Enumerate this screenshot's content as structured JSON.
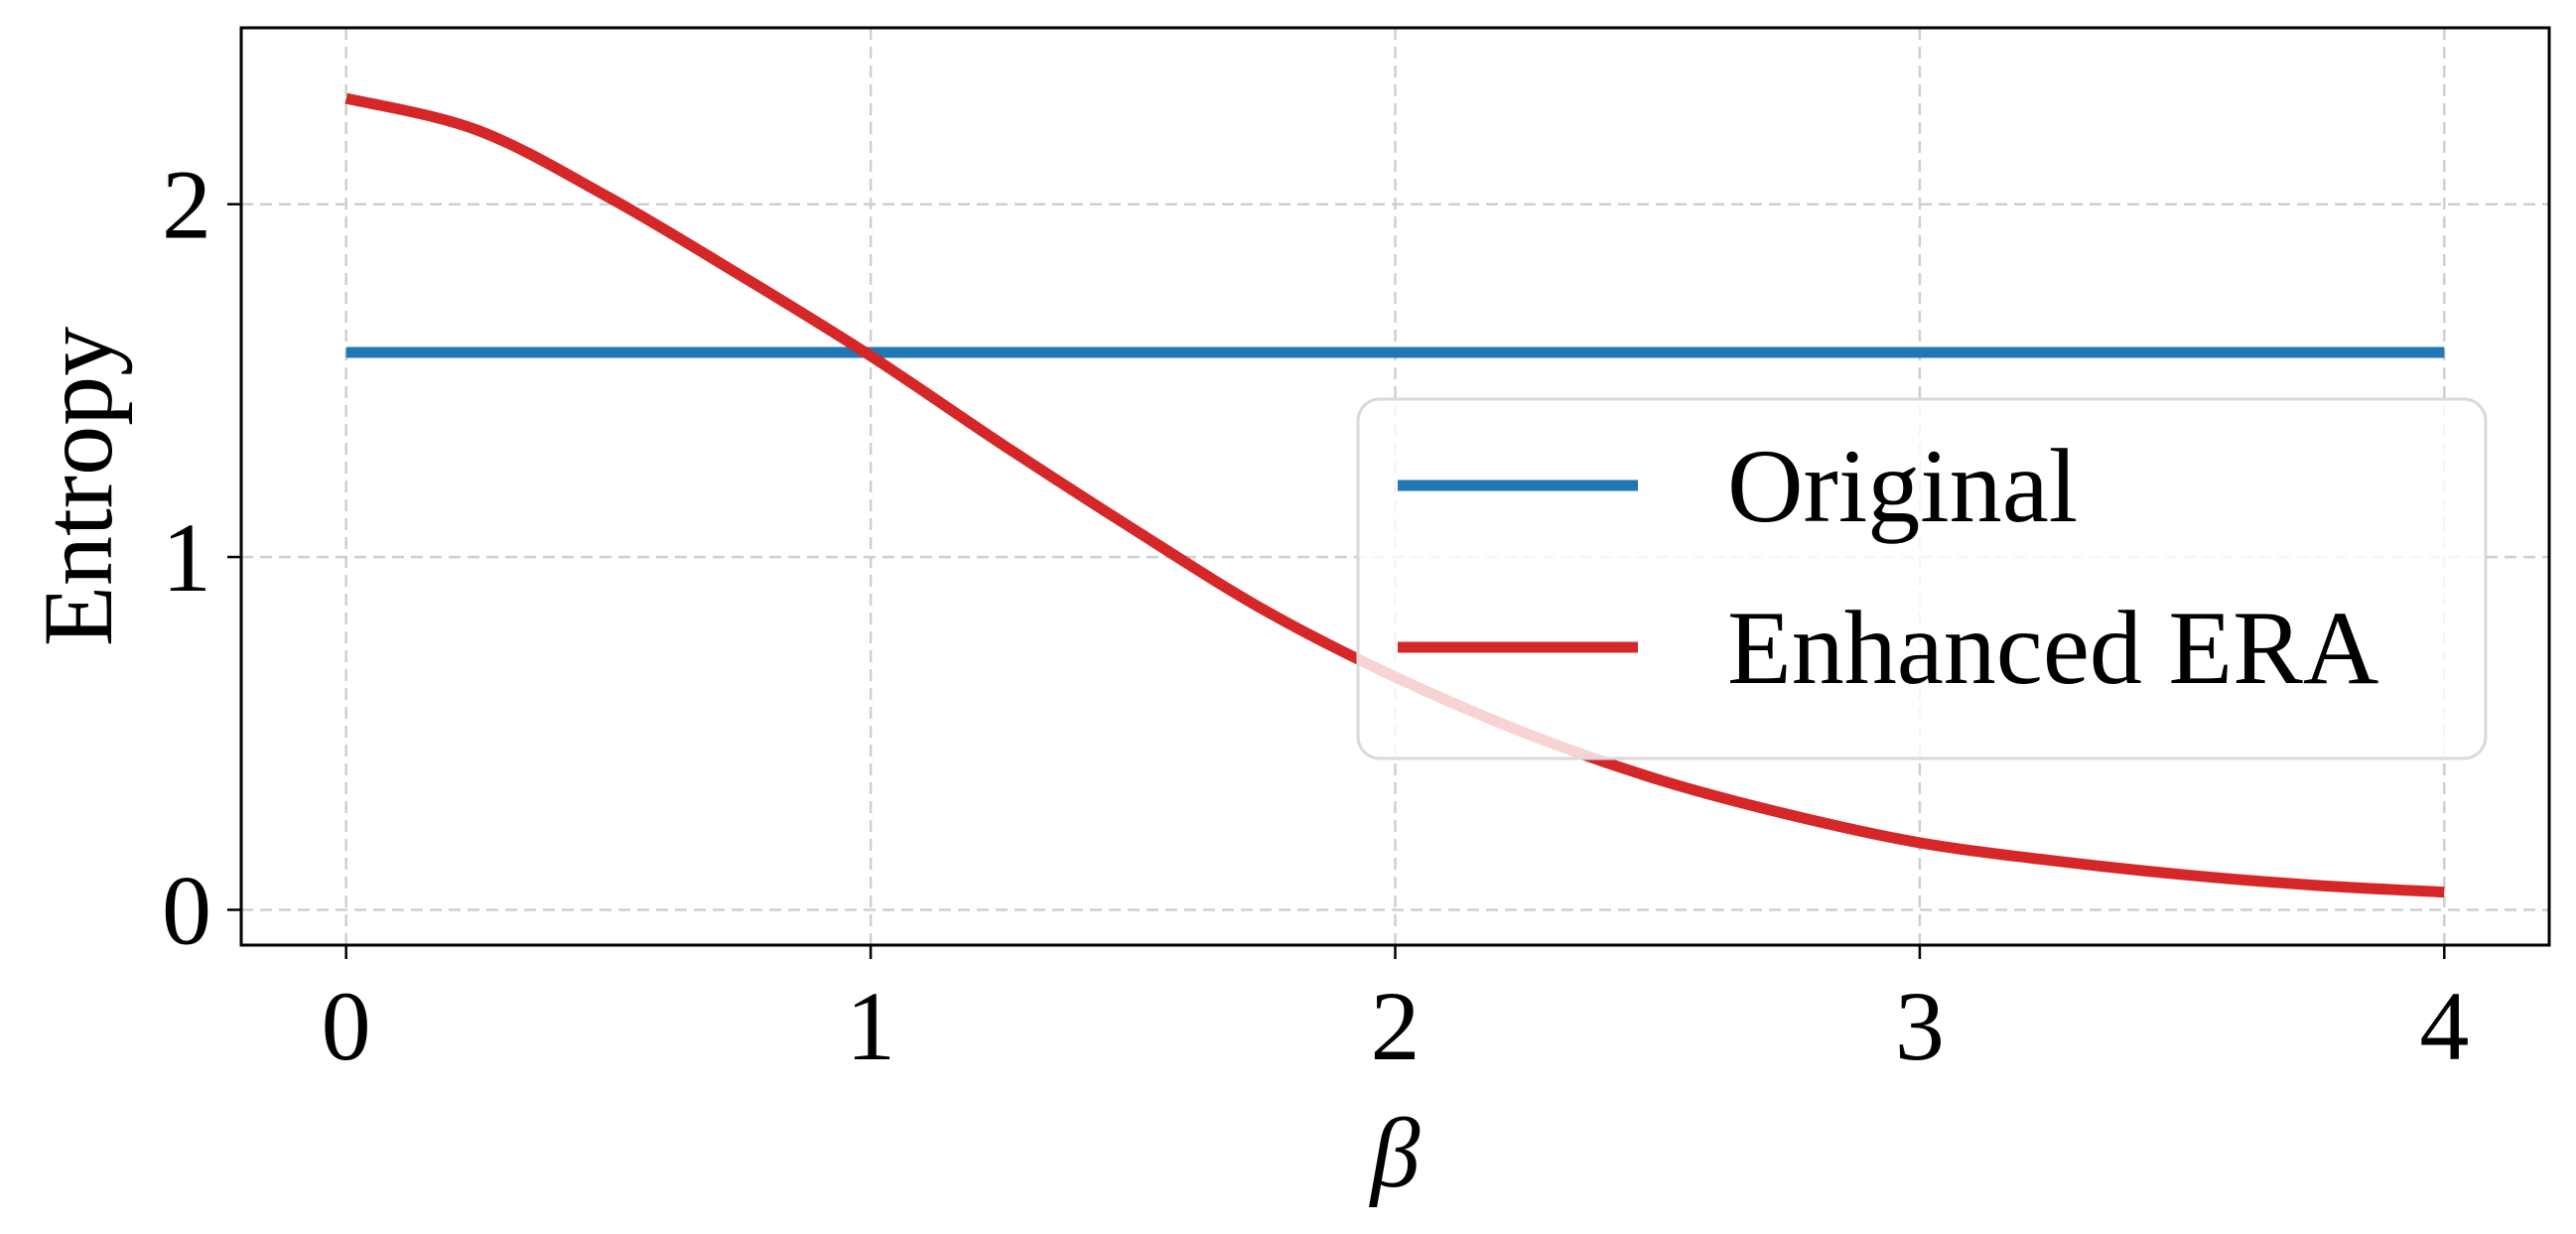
{
  "chart_data": {
    "type": "line",
    "xlabel": "β",
    "ylabel": "Entropy",
    "xlim": [
      -0.2,
      4.2
    ],
    "ylim": [
      -0.1,
      2.5
    ],
    "xticks": [
      0,
      1,
      2,
      3,
      4
    ],
    "xtick_labels": [
      "0",
      "1",
      "2",
      "3",
      "4"
    ],
    "yticks": [
      0,
      1,
      2
    ],
    "ytick_labels": [
      "0",
      "1",
      "2"
    ],
    "grid": true,
    "legend_position": "center-right",
    "series": [
      {
        "name": "Original",
        "color": "#1f77b4",
        "x": [
          0,
          0.5,
          1,
          1.5,
          2,
          2.5,
          3,
          3.5,
          4
        ],
        "y": [
          1.58,
          1.58,
          1.58,
          1.58,
          1.58,
          1.58,
          1.58,
          1.58,
          1.58
        ]
      },
      {
        "name": "Enhanced ERA",
        "color": "#d62728",
        "x": [
          0,
          0.25,
          0.5,
          0.75,
          1,
          1.25,
          1.5,
          1.75,
          2,
          2.25,
          2.5,
          2.75,
          3,
          3.25,
          3.5,
          3.75,
          4
        ],
        "y": [
          2.3,
          2.21,
          2.02,
          1.8,
          1.57,
          1.32,
          1.08,
          0.85,
          0.66,
          0.5,
          0.37,
          0.27,
          0.19,
          0.14,
          0.1,
          0.07,
          0.05
        ]
      }
    ]
  }
}
